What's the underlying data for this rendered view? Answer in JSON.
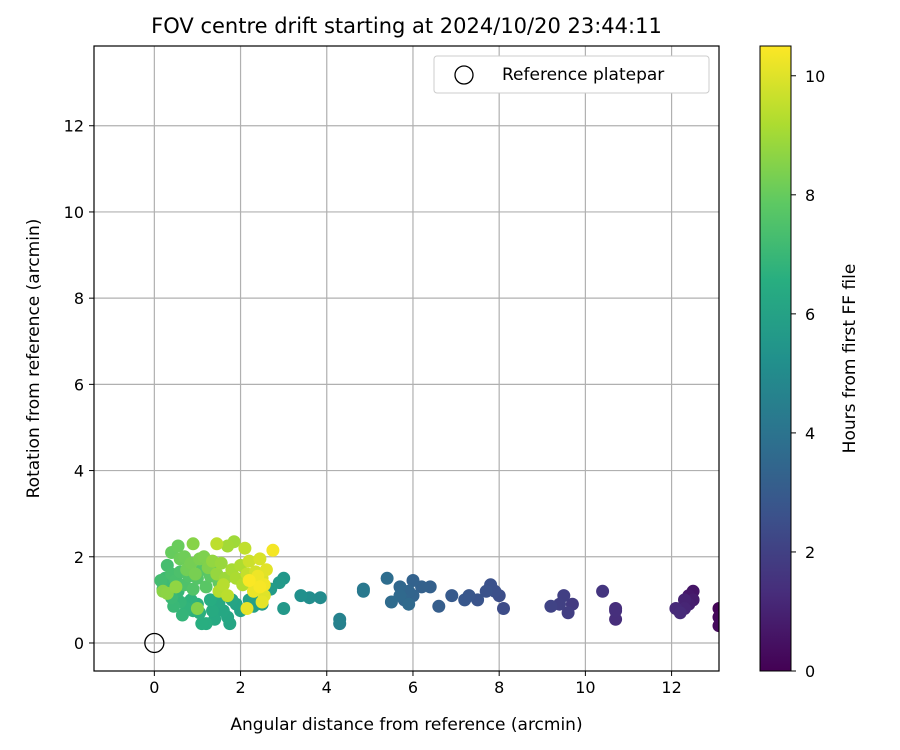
{
  "chart_data": {
    "type": "scatter",
    "title": "FOV centre drift starting at 2024/10/20 23:44:11",
    "xlabel": "Angular distance from reference (arcmin)",
    "ylabel": "Rotation from reference (arcmin)",
    "xlim": [
      -1.4,
      13.1
    ],
    "ylim": [
      -0.65,
      13.85
    ],
    "xticks": [
      0,
      2,
      4,
      6,
      8,
      10,
      12
    ],
    "yticks": [
      0,
      2,
      4,
      6,
      8,
      10,
      12
    ],
    "grid": true,
    "colormap": "viridis",
    "colorbar": {
      "label": "Hours from first FF file",
      "range": [
        0,
        10.5
      ],
      "ticks": [
        0,
        2,
        4,
        6,
        8,
        10
      ]
    },
    "legend": {
      "position": "top-right",
      "entries": [
        "Reference platepar"
      ]
    },
    "reference_point": {
      "x": 0,
      "y": 0,
      "label": "Reference platepar"
    },
    "points": [
      {
        "x": 13.1,
        "y": 0.8,
        "c": 0.1
      },
      {
        "x": 13.1,
        "y": 0.6,
        "c": 0.2
      },
      {
        "x": 13.1,
        "y": 0.4,
        "c": 0.3
      },
      {
        "x": 12.5,
        "y": 1.2,
        "c": 0.6
      },
      {
        "x": 12.4,
        "y": 1.1,
        "c": 0.7
      },
      {
        "x": 12.5,
        "y": 1.0,
        "c": 0.8
      },
      {
        "x": 12.4,
        "y": 0.9,
        "c": 0.9
      },
      {
        "x": 12.3,
        "y": 1.0,
        "c": 1.0
      },
      {
        "x": 12.3,
        "y": 0.8,
        "c": 1.1
      },
      {
        "x": 12.1,
        "y": 0.8,
        "c": 1.2
      },
      {
        "x": 12.2,
        "y": 0.7,
        "c": 1.25
      },
      {
        "x": 10.7,
        "y": 0.8,
        "c": 1.3
      },
      {
        "x": 10.7,
        "y": 0.55,
        "c": 1.35
      },
      {
        "x": 10.7,
        "y": 0.75,
        "c": 1.4
      },
      {
        "x": 10.4,
        "y": 1.2,
        "c": 1.6
      },
      {
        "x": 9.7,
        "y": 0.9,
        "c": 1.8
      },
      {
        "x": 9.6,
        "y": 0.7,
        "c": 1.9
      },
      {
        "x": 9.5,
        "y": 1.1,
        "c": 1.95
      },
      {
        "x": 9.4,
        "y": 0.9,
        "c": 2.0
      },
      {
        "x": 9.2,
        "y": 0.85,
        "c": 2.1
      },
      {
        "x": 8.1,
        "y": 0.8,
        "c": 2.4
      },
      {
        "x": 8.0,
        "y": 1.1,
        "c": 2.5
      },
      {
        "x": 7.9,
        "y": 1.2,
        "c": 2.55
      },
      {
        "x": 7.8,
        "y": 1.35,
        "c": 2.6
      },
      {
        "x": 7.7,
        "y": 1.2,
        "c": 2.65
      },
      {
        "x": 7.5,
        "y": 1.0,
        "c": 2.7
      },
      {
        "x": 7.3,
        "y": 1.1,
        "c": 2.8
      },
      {
        "x": 7.2,
        "y": 1.0,
        "c": 2.85
      },
      {
        "x": 6.9,
        "y": 1.1,
        "c": 2.95
      },
      {
        "x": 6.6,
        "y": 0.85,
        "c": 3.1
      },
      {
        "x": 6.4,
        "y": 1.3,
        "c": 3.2
      },
      {
        "x": 6.2,
        "y": 1.3,
        "c": 3.25
      },
      {
        "x": 6.0,
        "y": 1.45,
        "c": 3.3
      },
      {
        "x": 6.0,
        "y": 1.1,
        "c": 3.35
      },
      {
        "x": 5.9,
        "y": 1.2,
        "c": 3.4
      },
      {
        "x": 5.8,
        "y": 1.0,
        "c": 3.45
      },
      {
        "x": 5.7,
        "y": 1.3,
        "c": 3.5
      },
      {
        "x": 5.7,
        "y": 1.1,
        "c": 3.55
      },
      {
        "x": 5.9,
        "y": 0.9,
        "c": 3.6
      },
      {
        "x": 5.5,
        "y": 0.95,
        "c": 3.65
      },
      {
        "x": 5.4,
        "y": 1.5,
        "c": 3.75
      },
      {
        "x": 4.85,
        "y": 1.25,
        "c": 4.2
      },
      {
        "x": 4.85,
        "y": 1.2,
        "c": 4.25
      },
      {
        "x": 4.3,
        "y": 0.45,
        "c": 4.55
      },
      {
        "x": 4.3,
        "y": 0.55,
        "c": 4.6
      },
      {
        "x": 3.85,
        "y": 1.05,
        "c": 5.0
      },
      {
        "x": 3.6,
        "y": 1.05,
        "c": 5.1
      },
      {
        "x": 3.4,
        "y": 1.1,
        "c": 5.2
      },
      {
        "x": 3.0,
        "y": 1.5,
        "c": 5.5
      },
      {
        "x": 3.0,
        "y": 0.8,
        "c": 5.55
      },
      {
        "x": 2.9,
        "y": 1.4,
        "c": 5.6
      },
      {
        "x": 2.7,
        "y": 1.25,
        "c": 5.7
      },
      {
        "x": 2.5,
        "y": 0.9,
        "c": 5.8
      },
      {
        "x": 2.4,
        "y": 1.1,
        "c": 5.85
      },
      {
        "x": 2.3,
        "y": 0.85,
        "c": 5.9
      },
      {
        "x": 2.2,
        "y": 1.0,
        "c": 5.95
      },
      {
        "x": 2.0,
        "y": 0.75,
        "c": 6.0
      },
      {
        "x": 1.9,
        "y": 0.9,
        "c": 6.05
      },
      {
        "x": 1.8,
        "y": 1.0,
        "c": 6.1
      },
      {
        "x": 1.75,
        "y": 0.45,
        "c": 6.15
      },
      {
        "x": 1.7,
        "y": 0.6,
        "c": 6.2
      },
      {
        "x": 1.6,
        "y": 0.75,
        "c": 6.25
      },
      {
        "x": 1.5,
        "y": 0.95,
        "c": 6.3
      },
      {
        "x": 1.4,
        "y": 0.55,
        "c": 6.35
      },
      {
        "x": 1.35,
        "y": 0.75,
        "c": 6.4
      },
      {
        "x": 1.3,
        "y": 1.0,
        "c": 6.45
      },
      {
        "x": 1.2,
        "y": 0.45,
        "c": 6.5
      },
      {
        "x": 1.1,
        "y": 0.45,
        "c": 6.55
      },
      {
        "x": 1.05,
        "y": 0.7,
        "c": 6.6
      },
      {
        "x": 1.0,
        "y": 0.9,
        "c": 6.65
      },
      {
        "x": 0.9,
        "y": 0.75,
        "c": 6.7
      },
      {
        "x": 0.85,
        "y": 1.0,
        "c": 6.75
      },
      {
        "x": 0.75,
        "y": 0.8,
        "c": 6.8
      },
      {
        "x": 0.65,
        "y": 0.65,
        "c": 6.85
      },
      {
        "x": 0.6,
        "y": 0.95,
        "c": 6.9
      },
      {
        "x": 0.55,
        "y": 1.2,
        "c": 6.95
      },
      {
        "x": 0.45,
        "y": 0.85,
        "c": 7.0
      },
      {
        "x": 0.4,
        "y": 1.05,
        "c": 7.05
      },
      {
        "x": 0.35,
        "y": 1.3,
        "c": 7.1
      },
      {
        "x": 0.25,
        "y": 1.5,
        "c": 7.15
      },
      {
        "x": 0.2,
        "y": 1.25,
        "c": 7.2
      },
      {
        "x": 0.15,
        "y": 1.45,
        "c": 7.25
      },
      {
        "x": 0.3,
        "y": 1.8,
        "c": 7.3
      },
      {
        "x": 0.4,
        "y": 1.6,
        "c": 7.35
      },
      {
        "x": 0.5,
        "y": 1.45,
        "c": 7.4
      },
      {
        "x": 0.6,
        "y": 1.65,
        "c": 7.45
      },
      {
        "x": 0.7,
        "y": 1.35,
        "c": 7.5
      },
      {
        "x": 0.8,
        "y": 1.55,
        "c": 7.55
      },
      {
        "x": 0.9,
        "y": 1.25,
        "c": 7.6
      },
      {
        "x": 1.0,
        "y": 1.5,
        "c": 7.65
      },
      {
        "x": 1.1,
        "y": 1.7,
        "c": 7.7
      },
      {
        "x": 1.2,
        "y": 1.3,
        "c": 7.75
      },
      {
        "x": 1.3,
        "y": 1.55,
        "c": 7.8
      },
      {
        "x": 1.4,
        "y": 1.75,
        "c": 7.85
      },
      {
        "x": 1.5,
        "y": 1.4,
        "c": 7.9
      },
      {
        "x": 0.4,
        "y": 2.1,
        "c": 8.0
      },
      {
        "x": 0.55,
        "y": 2.25,
        "c": 8.05
      },
      {
        "x": 0.6,
        "y": 1.95,
        "c": 8.1
      },
      {
        "x": 0.7,
        "y": 2.0,
        "c": 8.15
      },
      {
        "x": 0.75,
        "y": 1.7,
        "c": 8.2
      },
      {
        "x": 0.85,
        "y": 1.85,
        "c": 8.25
      },
      {
        "x": 0.95,
        "y": 1.6,
        "c": 8.3
      },
      {
        "x": 1.05,
        "y": 1.95,
        "c": 8.35
      },
      {
        "x": 1.15,
        "y": 2.0,
        "c": 8.4
      },
      {
        "x": 1.25,
        "y": 1.75,
        "c": 8.45
      },
      {
        "x": 1.0,
        "y": 0.8,
        "c": 8.5
      },
      {
        "x": 0.9,
        "y": 2.3,
        "c": 8.55
      },
      {
        "x": 0.2,
        "y": 1.2,
        "c": 8.6
      },
      {
        "x": 0.3,
        "y": 1.15,
        "c": 8.65
      },
      {
        "x": 0.5,
        "y": 1.3,
        "c": 8.7
      },
      {
        "x": 1.35,
        "y": 1.9,
        "c": 8.75
      },
      {
        "x": 1.45,
        "y": 1.6,
        "c": 8.8
      },
      {
        "x": 1.55,
        "y": 1.85,
        "c": 8.85
      },
      {
        "x": 1.65,
        "y": 1.5,
        "c": 8.9
      },
      {
        "x": 1.85,
        "y": 2.35,
        "c": 8.95
      },
      {
        "x": 1.7,
        "y": 2.25,
        "c": 9.0
      },
      {
        "x": 1.8,
        "y": 1.7,
        "c": 9.1
      },
      {
        "x": 1.9,
        "y": 1.5,
        "c": 9.15
      },
      {
        "x": 2.0,
        "y": 1.8,
        "c": 9.2
      },
      {
        "x": 2.05,
        "y": 1.35,
        "c": 9.25
      },
      {
        "x": 1.5,
        "y": 1.2,
        "c": 9.3
      },
      {
        "x": 1.6,
        "y": 1.35,
        "c": 9.35
      },
      {
        "x": 1.7,
        "y": 1.1,
        "c": 9.4
      },
      {
        "x": 1.45,
        "y": 2.3,
        "c": 9.45
      },
      {
        "x": 2.1,
        "y": 2.2,
        "c": 9.5
      },
      {
        "x": 2.15,
        "y": 1.6,
        "c": 9.55
      },
      {
        "x": 2.2,
        "y": 1.9,
        "c": 9.7
      },
      {
        "x": 2.3,
        "y": 1.45,
        "c": 9.75
      },
      {
        "x": 2.35,
        "y": 1.65,
        "c": 9.8
      },
      {
        "x": 2.4,
        "y": 1.25,
        "c": 9.85
      },
      {
        "x": 2.45,
        "y": 1.95,
        "c": 9.9
      },
      {
        "x": 2.5,
        "y": 1.5,
        "c": 9.95
      },
      {
        "x": 2.55,
        "y": 1.1,
        "c": 10.0
      },
      {
        "x": 2.6,
        "y": 1.7,
        "c": 10.05
      },
      {
        "x": 2.5,
        "y": 0.95,
        "c": 10.1
      },
      {
        "x": 2.15,
        "y": 0.8,
        "c": 10.15
      },
      {
        "x": 2.3,
        "y": 1.2,
        "c": 10.2
      },
      {
        "x": 2.4,
        "y": 1.55,
        "c": 10.25
      },
      {
        "x": 2.55,
        "y": 1.35,
        "c": 10.3
      },
      {
        "x": 2.75,
        "y": 2.15,
        "c": 10.35
      },
      {
        "x": 2.45,
        "y": 1.3,
        "c": 10.4
      },
      {
        "x": 2.2,
        "y": 1.45,
        "c": 10.45
      }
    ]
  }
}
